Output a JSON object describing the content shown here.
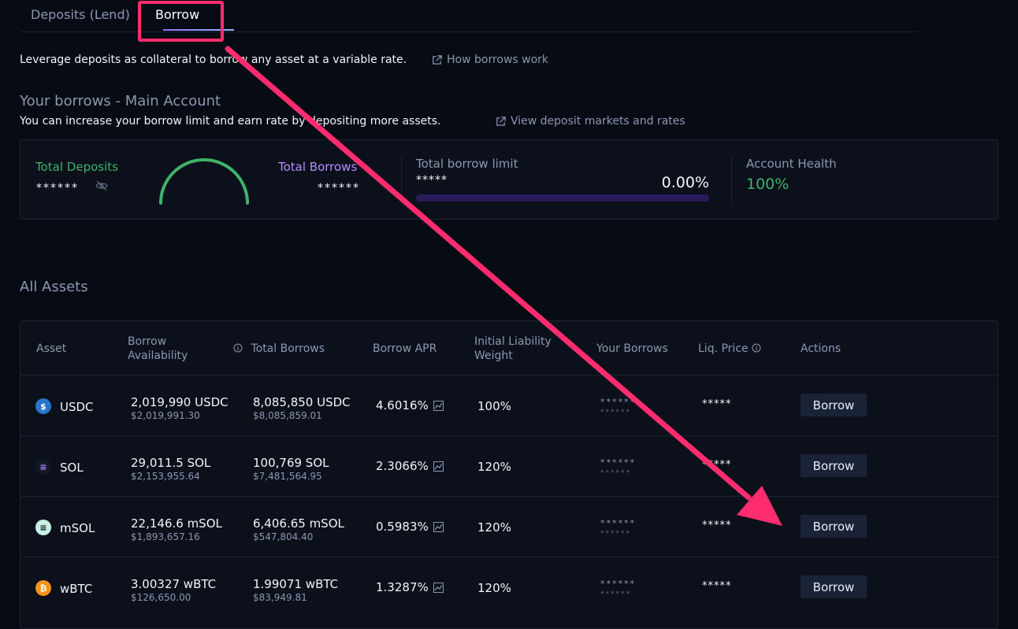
{
  "tabs": [
    {
      "label": "Deposits (Lend)"
    },
    {
      "label": "Borrow"
    }
  ],
  "intro": {
    "text": "Leverage deposits as collateral to borrow any asset at a variable rate.",
    "link": "How borrows work"
  },
  "section": {
    "title": "Your borrows - Main Account",
    "subtitle": "You can increase your borrow limit and earn rate by depositing more assets.",
    "link": "View deposit markets and rates"
  },
  "summary": {
    "total_deposits_label": "Total Deposits",
    "total_deposits_value": "******",
    "total_borrows_label": "Total Borrows",
    "total_borrows_value": "******",
    "borrow_limit_label": "Total borrow limit",
    "borrow_limit_value": "*****",
    "borrow_limit_pct": "0.00%",
    "health_label": "Account Health",
    "health_value": "100%"
  },
  "all_assets_title": "All Assets",
  "table": {
    "headers": {
      "asset": "Asset",
      "availability_1": "Borrow",
      "availability_2": "Availability",
      "total_borrows": "Total Borrows",
      "apr": "Borrow APR",
      "weight_1": "Initial Liability",
      "weight_2": "Weight",
      "your_borrows": "Your Borrows",
      "liq_price": "Liq. Price",
      "actions": "Actions"
    },
    "rows": [
      {
        "symbol": "USDC",
        "avail": "2,019,990 USDC",
        "avail_usd": "$2,019,991.30",
        "total": "8,085,850 USDC",
        "total_usd": "$8,085,859.01",
        "apr": "4.6016%",
        "weight": "100%",
        "your1": "******",
        "your2": "******",
        "liq": "*****",
        "action": "Borrow",
        "icon": "usdc-icon",
        "color": "#2775ca",
        "glyph": "$"
      },
      {
        "symbol": "SOL",
        "avail": "29,011.5 SOL",
        "avail_usd": "$2,153,955.64",
        "total": "100,769 SOL",
        "total_usd": "$7,481,564.95",
        "apr": "2.3066%",
        "weight": "120%",
        "your1": "******",
        "your2": "******",
        "liq": "*****",
        "action": "Borrow",
        "icon": "sol-icon",
        "color": "#101826",
        "glyph": "≡"
      },
      {
        "symbol": "mSOL",
        "avail": "22,146.6 mSOL",
        "avail_usd": "$1,893,657.16",
        "total": "6,406.65 mSOL",
        "total_usd": "$547,804.40",
        "apr": "0.5983%",
        "weight": "120%",
        "your1": "******",
        "your2": "******",
        "liq": "*****",
        "action": "Borrow",
        "icon": "msol-icon",
        "color": "#c9f0e4",
        "glyph": "≡"
      },
      {
        "symbol": "wBTC",
        "avail": "3.00327 wBTC",
        "avail_usd": "$126,650.00",
        "total": "1.99071 wBTC",
        "total_usd": "$83,949.81",
        "apr": "1.3287%",
        "weight": "120%",
        "your1": "******",
        "your2": "******",
        "liq": "*****",
        "action": "Borrow",
        "icon": "wbtc-icon",
        "color": "#f7931a",
        "glyph": "₿"
      }
    ]
  },
  "colors": {
    "accent_highlight": "#ff2d6e",
    "deposit_green": "#3fb26a",
    "borrow_purple": "#b48cff"
  }
}
